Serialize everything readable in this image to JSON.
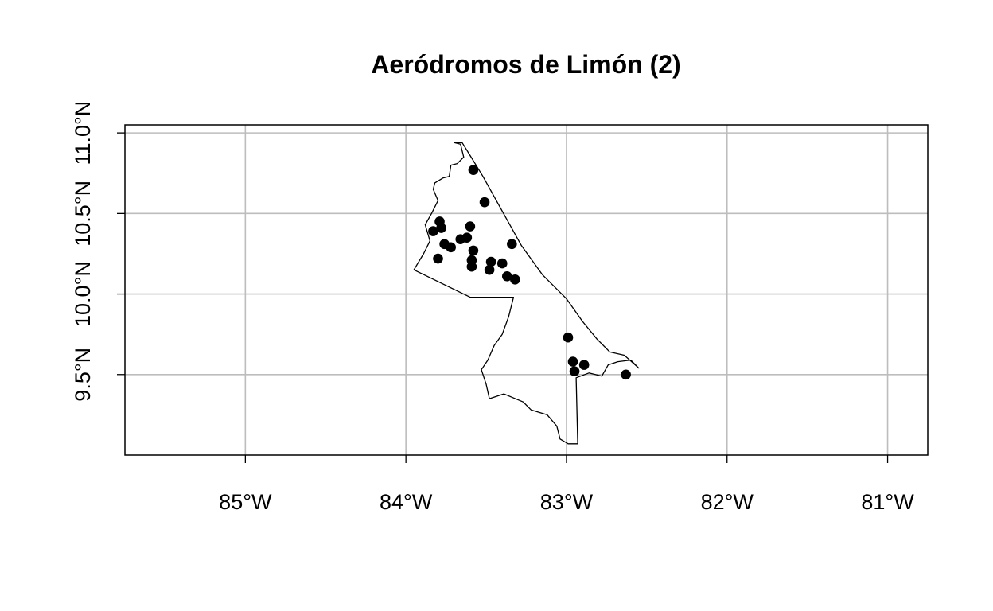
{
  "chart_data": {
    "type": "scatter",
    "title": "Aeródromos de Limón (2)",
    "xlabel": "",
    "ylabel": "",
    "xlim": [
      -85.75,
      -80.75
    ],
    "ylim": [
      9.0,
      11.05
    ],
    "grid": true,
    "x_ticks": [
      {
        "value": -85,
        "label": "85°W"
      },
      {
        "value": -84,
        "label": "84°W"
      },
      {
        "value": -83,
        "label": "83°W"
      },
      {
        "value": -82,
        "label": "82°W"
      },
      {
        "value": -81,
        "label": "81°W"
      }
    ],
    "y_ticks": [
      {
        "value": 9.5,
        "label": "9.5°N"
      },
      {
        "value": 10.0,
        "label": "10.0°N"
      },
      {
        "value": 10.5,
        "label": "10.5°N"
      },
      {
        "value": 11.0,
        "label": "11.0°N"
      }
    ],
    "points": [
      {
        "x": -83.58,
        "y": 10.77
      },
      {
        "x": -83.51,
        "y": 10.57
      },
      {
        "x": -83.79,
        "y": 10.45
      },
      {
        "x": -83.83,
        "y": 10.39
      },
      {
        "x": -83.78,
        "y": 10.41
      },
      {
        "x": -83.6,
        "y": 10.42
      },
      {
        "x": -83.62,
        "y": 10.35
      },
      {
        "x": -83.66,
        "y": 10.34
      },
      {
        "x": -83.76,
        "y": 10.31
      },
      {
        "x": -83.72,
        "y": 10.29
      },
      {
        "x": -83.58,
        "y": 10.27
      },
      {
        "x": -83.34,
        "y": 10.31
      },
      {
        "x": -83.8,
        "y": 10.22
      },
      {
        "x": -83.59,
        "y": 10.21
      },
      {
        "x": -83.59,
        "y": 10.17
      },
      {
        "x": -83.47,
        "y": 10.2
      },
      {
        "x": -83.4,
        "y": 10.19
      },
      {
        "x": -83.48,
        "y": 10.15
      },
      {
        "x": -83.37,
        "y": 10.11
      },
      {
        "x": -83.32,
        "y": 10.09
      },
      {
        "x": -82.99,
        "y": 9.73
      },
      {
        "x": -82.96,
        "y": 9.58
      },
      {
        "x": -82.89,
        "y": 9.56
      },
      {
        "x": -82.95,
        "y": 9.52
      },
      {
        "x": -82.63,
        "y": 9.5
      }
    ],
    "boundary": [
      [
        -83.7,
        10.94
      ],
      [
        -83.66,
        10.93
      ],
      [
        -83.64,
        10.85
      ],
      [
        -83.68,
        10.81
      ],
      [
        -83.72,
        10.8
      ],
      [
        -83.73,
        10.73
      ],
      [
        -83.77,
        10.72
      ],
      [
        -83.82,
        10.69
      ],
      [
        -83.83,
        10.65
      ],
      [
        -83.8,
        10.58
      ],
      [
        -83.84,
        10.5
      ],
      [
        -83.88,
        10.43
      ],
      [
        -83.85,
        10.33
      ],
      [
        -83.89,
        10.25
      ],
      [
        -83.95,
        10.15
      ],
      [
        -83.6,
        9.98
      ],
      [
        -83.33,
        9.98
      ],
      [
        -83.36,
        9.86
      ],
      [
        -83.4,
        9.75
      ],
      [
        -83.45,
        9.68
      ],
      [
        -83.49,
        9.59
      ],
      [
        -83.53,
        9.53
      ],
      [
        -83.5,
        9.44
      ],
      [
        -83.48,
        9.35
      ],
      [
        -83.39,
        9.38
      ],
      [
        -83.27,
        9.33
      ],
      [
        -83.22,
        9.28
      ],
      [
        -83.12,
        9.25
      ],
      [
        -83.06,
        9.18
      ],
      [
        -83.04,
        9.1
      ],
      [
        -82.99,
        9.07
      ],
      [
        -82.93,
        9.07
      ],
      [
        -82.94,
        9.48
      ],
      [
        -82.86,
        9.51
      ],
      [
        -82.78,
        9.49
      ],
      [
        -82.74,
        9.56
      ],
      [
        -82.68,
        9.58
      ],
      [
        -82.6,
        9.59
      ],
      [
        -82.55,
        9.54
      ],
      [
        -82.64,
        9.62
      ],
      [
        -82.73,
        9.64
      ],
      [
        -82.81,
        9.72
      ],
      [
        -82.9,
        9.83
      ],
      [
        -83.0,
        9.97
      ],
      [
        -83.15,
        10.12
      ],
      [
        -83.28,
        10.3
      ],
      [
        -83.42,
        10.55
      ],
      [
        -83.52,
        10.73
      ],
      [
        -83.6,
        10.86
      ],
      [
        -83.65,
        10.94
      ],
      [
        -83.7,
        10.94
      ]
    ]
  }
}
